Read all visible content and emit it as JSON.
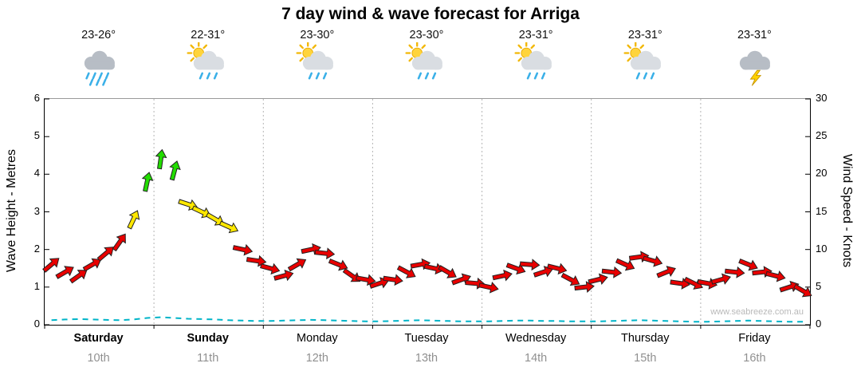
{
  "title": "7 day wind & wave forecast for Arriga",
  "watermark": "www.seabreeze.com.au",
  "forecast": {
    "days": [
      {
        "name": "Saturday",
        "date": "10th",
        "temp": "23-26°",
        "icon": "rain",
        "bold": true
      },
      {
        "name": "Sunday",
        "date": "11th",
        "temp": "22-31°",
        "icon": "sun-rain",
        "bold": true
      },
      {
        "name": "Monday",
        "date": "12th",
        "temp": "23-30°",
        "icon": "sun-rain",
        "bold": false
      },
      {
        "name": "Tuesday",
        "date": "13th",
        "temp": "23-30°",
        "icon": "sun-rain",
        "bold": false
      },
      {
        "name": "Wednesday",
        "date": "14th",
        "temp": "23-31°",
        "icon": "sun-rain",
        "bold": false
      },
      {
        "name": "Thursday",
        "date": "15th",
        "temp": "23-31°",
        "icon": "sun-rain",
        "bold": false
      },
      {
        "name": "Friday",
        "date": "16th",
        "temp": "23-31°",
        "icon": "storm",
        "bold": false
      }
    ]
  },
  "chart_data": {
    "type": "line",
    "title": "7 day wind & wave forecast for Arriga",
    "points_per_day": 8,
    "left_axis": {
      "label": "Wave Height - Metres",
      "min": 0,
      "max": 6,
      "ticks": [
        0,
        1,
        2,
        3,
        4,
        5,
        6
      ]
    },
    "right_axis": {
      "label": "Wind Speed - Knots",
      "min": 0,
      "max": 30,
      "ticks": [
        0,
        5,
        10,
        15,
        20,
        25,
        30
      ]
    },
    "x_axis": {
      "day_names": [
        "Saturday",
        "Sunday",
        "Monday",
        "Tuesday",
        "Wednesday",
        "Thursday",
        "Friday"
      ],
      "dates": [
        "10th",
        "11th",
        "12th",
        "13th",
        "14th",
        "15th",
        "16th"
      ],
      "gridlines": "vertical-dotted-day-separators"
    },
    "wind": {
      "units": "knots",
      "knots": [
        8,
        7,
        6.5,
        8,
        9.5,
        11,
        14,
        19,
        22,
        20.5,
        16,
        15,
        14,
        13,
        10,
        8.5,
        7.5,
        6.5,
        8,
        10,
        9.5,
        8,
        6.5,
        6,
        5.5,
        6,
        7,
        8,
        7.5,
        7,
        6,
        5.5,
        5,
        6.5,
        7.5,
        8,
        7,
        7.5,
        6,
        5,
        6,
        7,
        8,
        9,
        8.5,
        7,
        5.5,
        5.5,
        5.5,
        6,
        7,
        8,
        7,
        6.5,
        5,
        4.5
      ],
      "dir_deg": [
        -40,
        -30,
        -35,
        -30,
        -40,
        -55,
        -65,
        -78,
        -82,
        -75,
        18,
        25,
        30,
        24,
        12,
        8,
        15,
        -15,
        -30,
        -12,
        6,
        22,
        35,
        10,
        -18,
        8,
        28,
        -10,
        12,
        30,
        -20,
        5,
        12,
        -12,
        20,
        4,
        -18,
        14,
        28,
        -6,
        -14,
        6,
        24,
        -8,
        16,
        -22,
        8,
        26,
        10,
        -16,
        6,
        22,
        -6,
        14,
        -18,
        30
      ]
    },
    "wave": {
      "units": "metres",
      "heights": [
        0.12,
        0.14,
        0.15,
        0.14,
        0.13,
        0.12,
        0.14,
        0.18,
        0.2,
        0.18,
        0.16,
        0.15,
        0.14,
        0.12,
        0.11,
        0.1,
        0.1,
        0.11,
        0.12,
        0.13,
        0.12,
        0.11,
        0.1,
        0.09,
        0.09,
        0.1,
        0.11,
        0.12,
        0.11,
        0.1,
        0.09,
        0.09,
        0.09,
        0.1,
        0.11,
        0.11,
        0.1,
        0.1,
        0.09,
        0.09,
        0.09,
        0.1,
        0.11,
        0.12,
        0.11,
        0.1,
        0.09,
        0.08,
        0.08,
        0.09,
        0.1,
        0.11,
        0.1,
        0.09,
        0.08,
        0.08
      ]
    },
    "speed_colors": {
      "red": "#e80000",
      "yellow": "#ffe800",
      "green": "#22dd00",
      "red_below": 11.5,
      "yellow_below": 18,
      "arrow_outline": "#222222",
      "wave_line": "#00b4c8"
    }
  }
}
